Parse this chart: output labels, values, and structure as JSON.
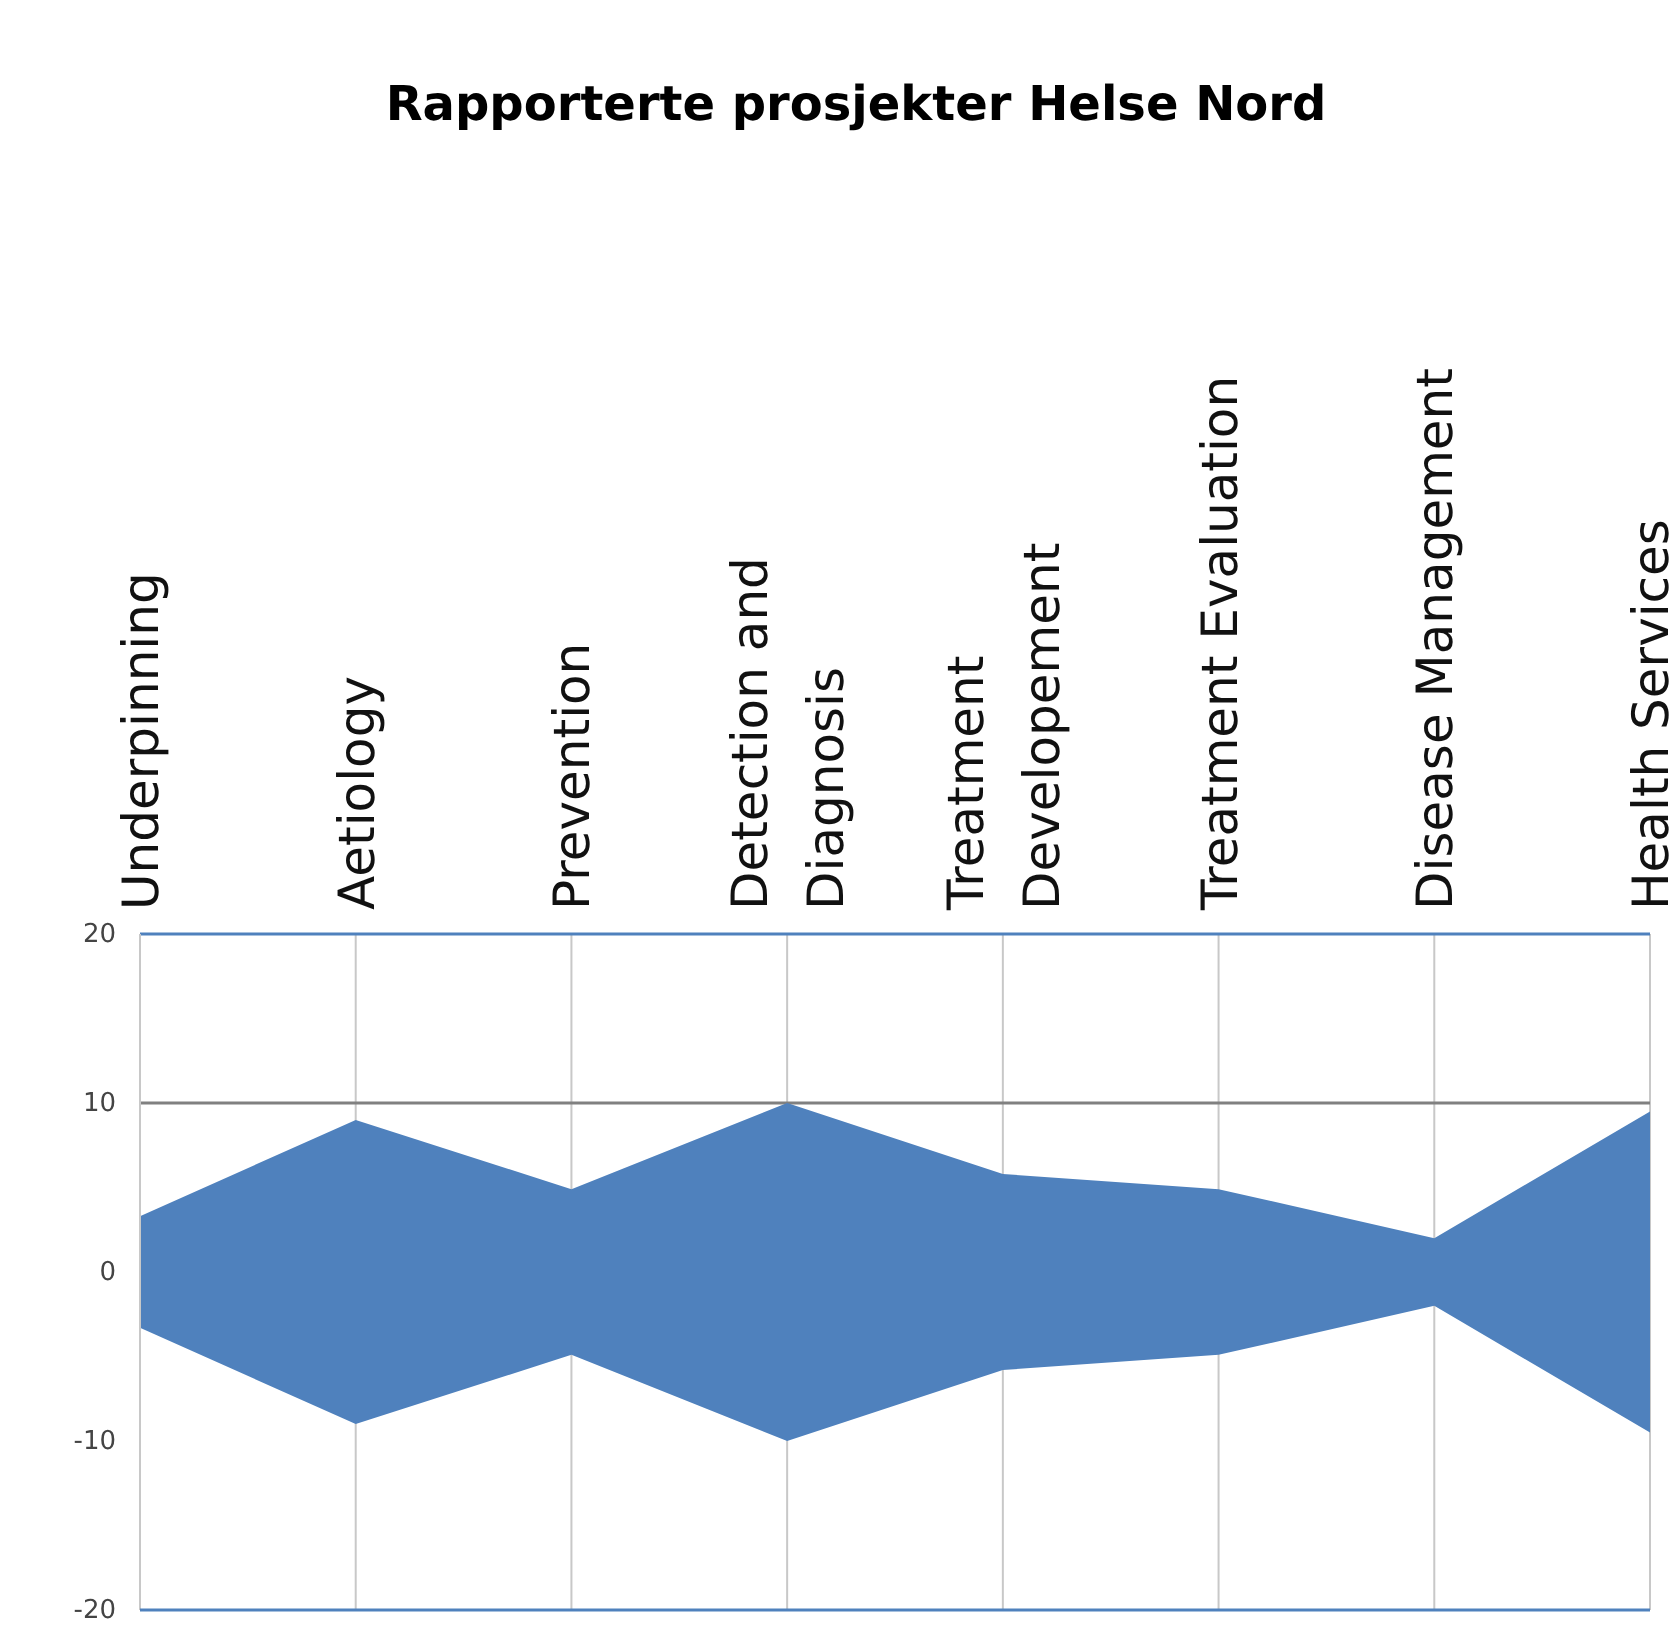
{
  "chart_data": {
    "type": "area",
    "title": "Rapporterte prosjekter Helse Nord",
    "categories": [
      "Underpinning",
      "Aetiology",
      "Prevention",
      "Detection and\nDiagnosis",
      "Treatment\nDevelopement",
      "Treatment Evaluation",
      "Disease Management",
      "Health Services"
    ],
    "series": [
      {
        "color": "#4f81bd",
        "values": [
          3.3,
          9,
          4.9,
          10,
          5.8,
          4.9,
          2,
          9.5
        ]
      },
      {
        "color": "#4f81bd",
        "values": [
          -3.3,
          -9,
          -4.9,
          -10,
          -5.8,
          -4.9,
          -2,
          -9.5
        ]
      }
    ],
    "ylim": [
      -20,
      20
    ],
    "yticks": [
      -20,
      -10,
      0,
      10,
      20
    ],
    "grid": "x",
    "ref_lines": [
      {
        "axis": "y",
        "value": 10,
        "color": "#808080"
      }
    ]
  }
}
